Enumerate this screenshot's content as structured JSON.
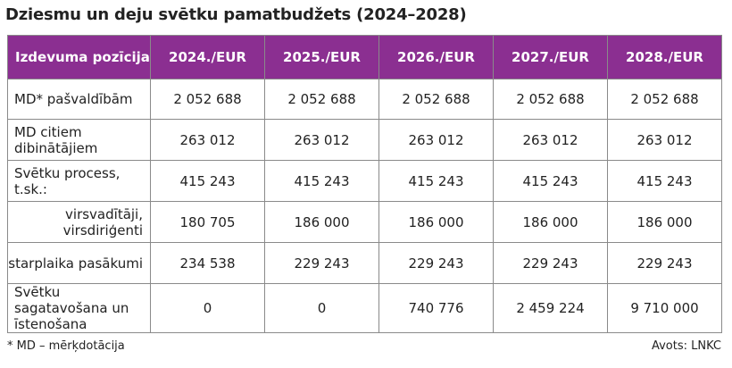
{
  "title": "Dziesmu un deju svētku pamatbudžets (2024–2028)",
  "table": {
    "headers": [
      "Izdevuma pozīcija",
      "2024./EUR",
      "2025./EUR",
      "2026./EUR",
      "2027./EUR",
      "2028./EUR"
    ],
    "rows": [
      {
        "label": "MD* pašvaldībām",
        "values": [
          "2 052 688",
          "2 052 688",
          "2 052 688",
          "2 052 688",
          "2 052 688"
        ]
      },
      {
        "label": "MD citiem dibinātājiem",
        "values": [
          "263 012",
          "263 012",
          "263 012",
          "263 012",
          "263 012"
        ]
      },
      {
        "label": "Svētku process, t.sk.:",
        "values": [
          "415 243",
          "415 243",
          "415 243",
          "415 243",
          "415 243"
        ]
      },
      {
        "label": "virsvadītāji, virsdiriģenti",
        "values": [
          "180 705",
          "186 000",
          "186 000",
          "186 000",
          "186 000"
        ]
      },
      {
        "label": "starplaika pasākumi",
        "values": [
          "234 538",
          "229 243",
          "229 243",
          "229 243",
          "229 243"
        ]
      },
      {
        "label": "Svētku sagatavošana un īstenošana",
        "values": [
          "0",
          "0",
          "740 776",
          "2 459 224",
          "9 710 000"
        ]
      }
    ]
  },
  "footnote": "* MD – mērķdotācija",
  "source": "Avots: LNKC",
  "colors": {
    "header_bg": "#8b2f91",
    "header_text": "#ffffff",
    "border": "#8a8a8a"
  }
}
